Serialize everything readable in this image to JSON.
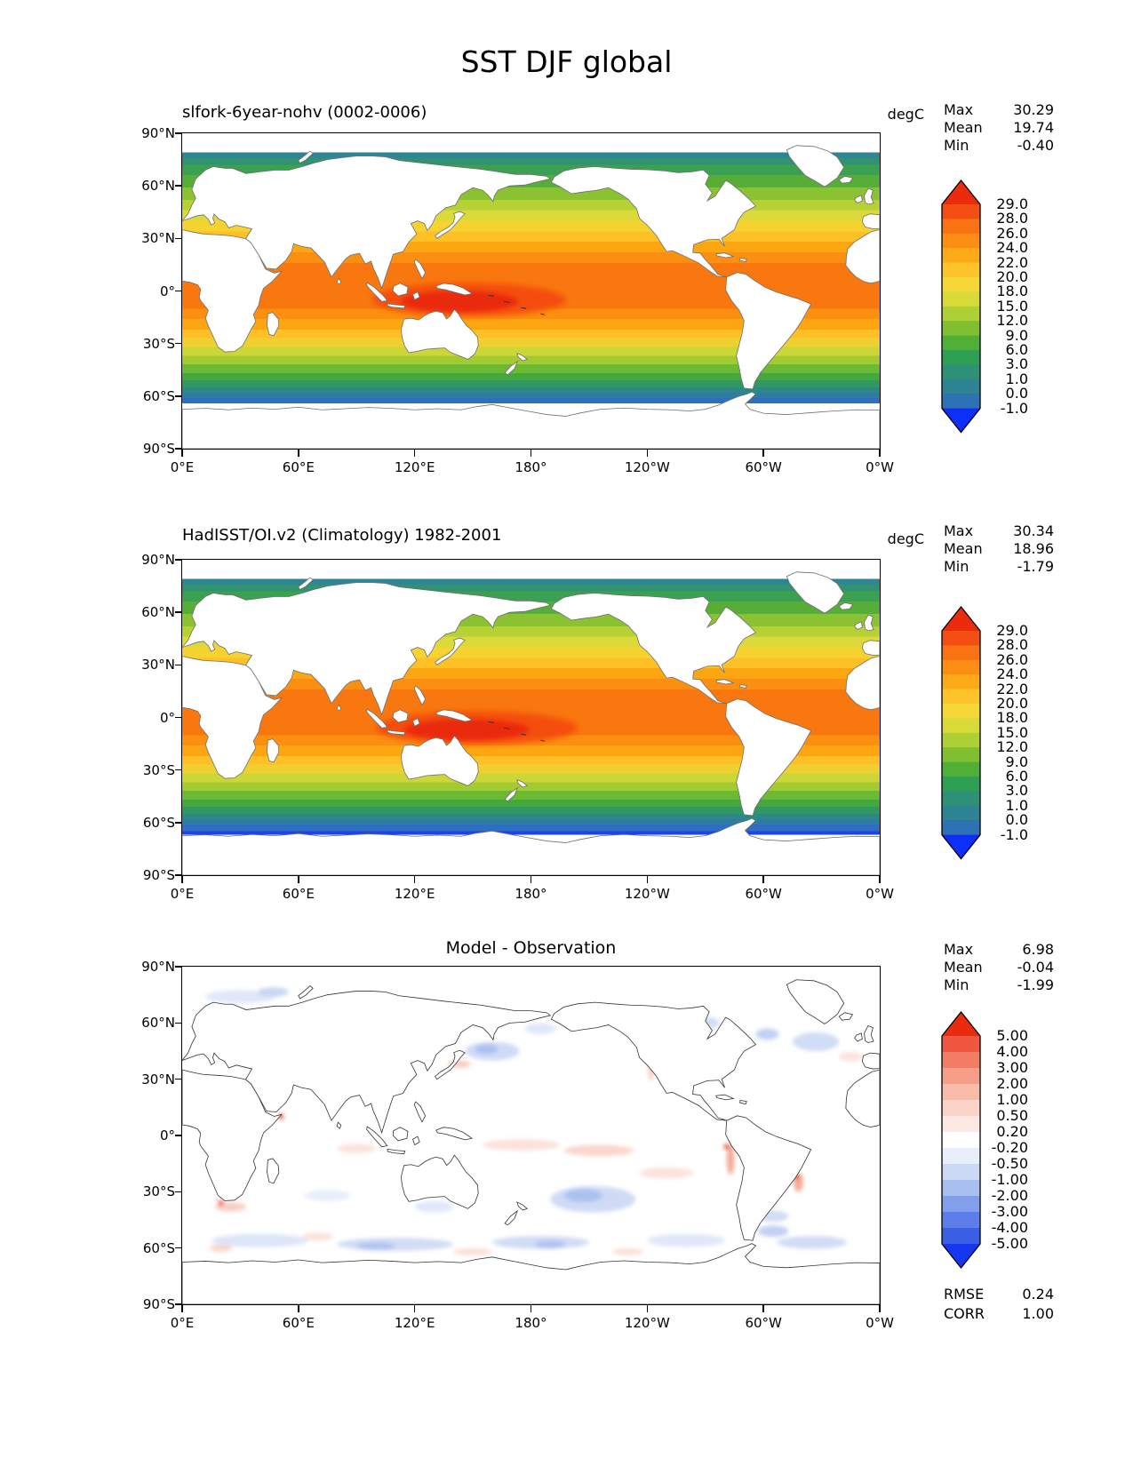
{
  "page_title": "SST DJF global",
  "panels": [
    {
      "id": "model",
      "title": "slfork-6year-nohv (0002-0006)",
      "units": "degC",
      "stats": [
        {
          "label": "Max",
          "value": "30.29"
        },
        {
          "label": "Mean",
          "value": "19.74"
        },
        {
          "label": "Min",
          "value": "-0.40"
        }
      ],
      "colorbar": {
        "labels": [
          "29.0",
          "28.0",
          "26.0",
          "24.0",
          "22.0",
          "20.0",
          "18.0",
          "15.0",
          "12.0",
          "9.0",
          "6.0",
          "3.0",
          "1.0",
          "0.0",
          "-1.0"
        ],
        "colors": [
          "#eb2a0e",
          "#f44e13",
          "#f97313",
          "#fb8e13",
          "#fdaa18",
          "#fdc42c",
          "#f5d838",
          "#d7da37",
          "#aed034",
          "#7fbf31",
          "#51ae37",
          "#2fa053",
          "#2d9077",
          "#2e8494",
          "#2d72b4",
          "#0e2ff7"
        ]
      },
      "xticks": [
        "0°E",
        "60°E",
        "120°E",
        "180°",
        "120°W",
        "60°W",
        "0°W"
      ],
      "yticks": [
        "90°N",
        "60°N",
        "30°N",
        "0°",
        "30°S",
        "60°S",
        "90°S"
      ]
    },
    {
      "id": "observation",
      "title": "HadISST/OI.v2 (Climatology) 1982-2001",
      "units": "degC",
      "stats": [
        {
          "label": "Max",
          "value": "30.34"
        },
        {
          "label": "Mean",
          "value": "18.96"
        },
        {
          "label": "Min",
          "value": "-1.79"
        }
      ],
      "colorbar": {
        "labels": [
          "29.0",
          "28.0",
          "26.0",
          "24.0",
          "22.0",
          "20.0",
          "18.0",
          "15.0",
          "12.0",
          "9.0",
          "6.0",
          "3.0",
          "1.0",
          "0.0",
          "-1.0"
        ],
        "colors": [
          "#eb2a0e",
          "#f44e13",
          "#f97313",
          "#fb8e13",
          "#fdaa18",
          "#fdc42c",
          "#f5d838",
          "#d7da37",
          "#aed034",
          "#7fbf31",
          "#51ae37",
          "#2fa053",
          "#2d9077",
          "#2e8494",
          "#2d72b4",
          "#0e2ff7"
        ]
      },
      "xticks": [
        "0°E",
        "60°E",
        "120°E",
        "180°",
        "120°W",
        "60°W",
        "0°W"
      ],
      "yticks": [
        "90°N",
        "60°N",
        "30°N",
        "0°",
        "30°S",
        "60°S",
        "90°S"
      ]
    },
    {
      "id": "difference",
      "title": "Model - Observation",
      "stats": [
        {
          "label": "Max",
          "value": "6.98"
        },
        {
          "label": "Mean",
          "value": "-0.04"
        },
        {
          "label": "Min",
          "value": "-1.99"
        }
      ],
      "colorbar": {
        "labels": [
          "5.00",
          "4.00",
          "3.00",
          "2.00",
          "1.00",
          "0.50",
          "0.20",
          "-0.20",
          "-0.50",
          "-1.00",
          "-2.00",
          "-3.00",
          "-4.00",
          "-5.00"
        ],
        "colors": [
          "#ea2b0e",
          "#ef5740",
          "#f37c64",
          "#f69e88",
          "#f9bcab",
          "#fbd3c8",
          "#fde9e3",
          "#ffffff",
          "#e8eefa",
          "#ccd9f4",
          "#a9bff0",
          "#839fec",
          "#5d7ee8",
          "#3a5ee4",
          "#1537f2"
        ]
      },
      "extra_stats": [
        {
          "label": "RMSE",
          "value": "0.24"
        },
        {
          "label": "CORR",
          "value": "1.00"
        }
      ],
      "xticks": [
        "0°E",
        "60°E",
        "120°E",
        "180°",
        "120°W",
        "60°W",
        "0°W"
      ],
      "yticks": [
        "90°N",
        "60°N",
        "30°N",
        "0°",
        "30°S",
        "60°S",
        "90°S"
      ]
    }
  ],
  "chart_data": [
    {
      "type": "heatmap",
      "subtype": "filled_contour_map",
      "title": "slfork-6year-nohv (0002-0006)",
      "units": "degC",
      "projection": "equirectangular global, 0°E to 0°W through 180°",
      "stats": {
        "max": 30.29,
        "mean": 19.74,
        "min": -0.4
      },
      "contour_levels": [
        -1.0,
        0.0,
        1.0,
        3.0,
        6.0,
        9.0,
        12.0,
        15.0,
        18.0,
        20.0,
        22.0,
        24.0,
        26.0,
        28.0,
        29.0
      ],
      "palette_warm_to_cold": [
        "#eb2a0e",
        "#f44e13",
        "#f97313",
        "#fb8e13",
        "#fdaa18",
        "#fdc42c",
        "#f5d838",
        "#d7da37",
        "#aed034",
        "#7fbf31",
        "#51ae37",
        "#2fa053",
        "#2d9077",
        "#2e8494",
        "#2d72b4",
        "#0e2ff7"
      ],
      "xticklabels": [
        "0°E",
        "60°E",
        "120°E",
        "180°",
        "120°W",
        "60°W",
        "0°W"
      ],
      "yticklabels": [
        "90°N",
        "60°N",
        "30°N",
        "0°",
        "30°S",
        "60°S",
        "90°S"
      ],
      "pattern": "zonal SST bands: >29°C warm pool in tropical Indo-Pacific, decreasing poleward to ~-1°C near 60°S and in high northern latitude seas; data gap south of ~64°S before Antarctic coast"
    },
    {
      "type": "heatmap",
      "subtype": "filled_contour_map",
      "title": "HadISST/OI.v2 (Climatology) 1982-2001",
      "units": "degC",
      "projection": "equirectangular global, 0°E to 0°W through 180°",
      "stats": {
        "max": 30.34,
        "mean": 18.96,
        "min": -1.79
      },
      "contour_levels": [
        -1.0,
        0.0,
        1.0,
        3.0,
        6.0,
        9.0,
        12.0,
        15.0,
        18.0,
        20.0,
        22.0,
        24.0,
        26.0,
        28.0,
        29.0
      ],
      "palette_warm_to_cold": [
        "#eb2a0e",
        "#f44e13",
        "#f97313",
        "#fb8e13",
        "#fdaa18",
        "#fdc42c",
        "#f5d838",
        "#d7da37",
        "#aed034",
        "#7fbf31",
        "#51ae37",
        "#2fa053",
        "#2d9077",
        "#2e8494",
        "#2d72b4",
        "#0e2ff7"
      ],
      "xticklabels": [
        "0°E",
        "60°E",
        "120°E",
        "180°",
        "120°W",
        "60°W",
        "0°W"
      ],
      "yticklabels": [
        "90°N",
        "60°N",
        "30°N",
        "0°",
        "30°S",
        "60°S",
        "90°S"
      ],
      "pattern": "same zonal structure as model; colder (<-1°C, blue) water extends to the Antarctic coastline and into Arctic marginal seas"
    },
    {
      "type": "heatmap",
      "subtype": "difference_map",
      "title": "Model - Observation",
      "units": "degC",
      "projection": "equirectangular global, 0°E to 0°W through 180°",
      "stats": {
        "max": 6.98,
        "mean": -0.04,
        "min": -1.99
      },
      "contour_levels": [
        -5.0,
        -4.0,
        -3.0,
        -2.0,
        -1.0,
        -0.5,
        -0.2,
        0.2,
        0.5,
        1.0,
        2.0,
        3.0,
        4.0,
        5.0
      ],
      "palette_warm_to_cold": [
        "#ea2b0e",
        "#ef5740",
        "#f37c64",
        "#f69e88",
        "#f9bcab",
        "#fbd3c8",
        "#fde9e3",
        "#ffffff",
        "#e8eefa",
        "#ccd9f4",
        "#a9bff0",
        "#839fec",
        "#5d7ee8",
        "#3a5ee4",
        "#1537f2"
      ],
      "rmse": 0.24,
      "corr": 1.0,
      "xticklabels": [
        "0°E",
        "60°E",
        "120°E",
        "180°",
        "120°W",
        "60°W",
        "0°W"
      ],
      "yticklabels": [
        "90°N",
        "60°N",
        "30°N",
        "0°",
        "30°S",
        "60°S",
        "90°S"
      ],
      "pattern": "mostly near zero (white); weak negative (blue) patches in the Southern Ocean, subtropical South Pacific and NW Pacific; weak positive (red) spots along western boundary currents and coastal upwelling zones"
    }
  ]
}
